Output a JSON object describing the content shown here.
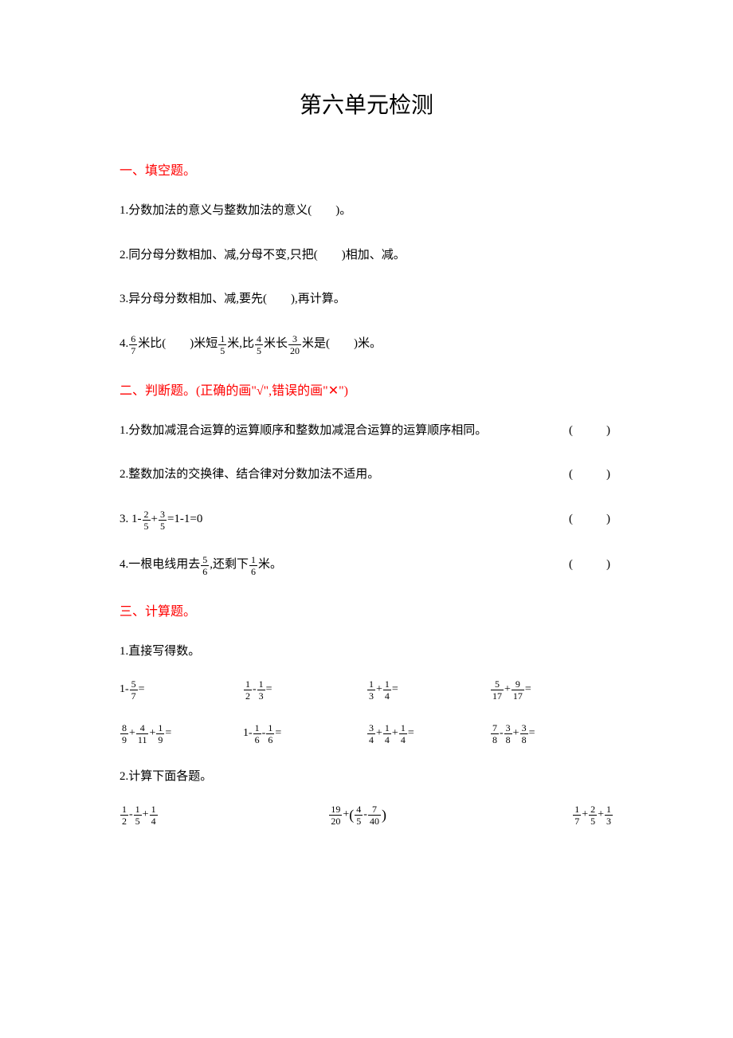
{
  "title": "第六单元检测",
  "section1": {
    "header": "一、填空题。",
    "q1": "1.分数加法的意义与整数加法的意义(　　)。",
    "q2": "2.同分母分数相加、减,分母不变,只把(　　)相加、减。",
    "q3": "3.异分母分数相加、减,要先(　　),再计算。",
    "q4_prefix": "4.",
    "q4_m1": "米比(　　)米短",
    "q4_m2": "米,比",
    "q4_m3": "米长",
    "q4_m4": "米是(　　)米。",
    "f67n": "6",
    "f67d": "7",
    "f15n": "1",
    "f15d": "5",
    "f45n": "4",
    "f45d": "5",
    "f320n": "3",
    "f320d": "20"
  },
  "section2": {
    "header": "二、判断题。(正确的画\"√\",错误的画\"✕\")",
    "q1": "1.分数加减混合运算的运算顺序和整数加减混合运算的运算顺序相同。",
    "q2": "2.整数加法的交换律、结合律对分数加法不适用。",
    "q3_prefix": "3. 1-",
    "q3_plus": "+",
    "q3_suffix": "=1-1=0",
    "f25n": "2",
    "f25d": "5",
    "f35n": "3",
    "f35d": "5",
    "q4_prefix": "4.一根电线用去",
    "q4_mid": ",还剩下",
    "q4_suffix": "米。",
    "f56n": "5",
    "f56d": "6",
    "f16n": "1",
    "f16d": "6",
    "paren": "(　　)"
  },
  "section3": {
    "header": "三、计算题。",
    "sub1": "1.直接写得数。",
    "sub2": "2.计算下面各题。",
    "r1": {
      "c1_pre": "1-",
      "c1_f1n": "5",
      "c1_f1d": "7",
      "c1_post": "=",
      "c2_f1n": "1",
      "c2_f1d": "2",
      "c2_op": "-",
      "c2_f2n": "1",
      "c2_f2d": "3",
      "c2_post": "=",
      "c3_f1n": "1",
      "c3_f1d": "3",
      "c3_op": "+",
      "c3_f2n": "1",
      "c3_f2d": "4",
      "c3_post": "=",
      "c4_f1n": "5",
      "c4_f1d": "17",
      "c4_op": "+",
      "c4_f2n": "9",
      "c4_f2d": "17",
      "c4_post": "="
    },
    "r2": {
      "c1_f1n": "8",
      "c1_f1d": "9",
      "c1_op1": "+",
      "c1_f2n": "4",
      "c1_f2d": "11",
      "c1_op2": "+",
      "c1_f3n": "1",
      "c1_f3d": "9",
      "c1_post": "=",
      "c2_pre": "1-",
      "c2_f1n": "1",
      "c2_f1d": "6",
      "c2_op": "-",
      "c2_f2n": "1",
      "c2_f2d": "6",
      "c2_post": "=",
      "c3_f1n": "3",
      "c3_f1d": "4",
      "c3_op1": "+",
      "c3_f2n": "1",
      "c3_f2d": "4",
      "c3_op2": "+",
      "c3_f3n": "1",
      "c3_f3d": "4",
      "c3_post": "=",
      "c4_f1n": "7",
      "c4_f1d": "8",
      "c4_op1": "-",
      "c4_f2n": "3",
      "c4_f2d": "8",
      "c4_op2": "+",
      "c4_f3n": "3",
      "c4_f3d": "8",
      "c4_post": "="
    },
    "r3": {
      "c1_f1n": "1",
      "c1_f1d": "2",
      "c1_op1": "-",
      "c1_f2n": "1",
      "c1_f2d": "5",
      "c1_op2": "+",
      "c1_f3n": "1",
      "c1_f3d": "4",
      "c2_f1n": "19",
      "c2_f1d": "20",
      "c2_op1": "+",
      "c2_lp": "(",
      "c2_f2n": "4",
      "c2_f2d": "5",
      "c2_op2": " - ",
      "c2_f3n": "7",
      "c2_f3d": "40",
      "c2_rp": ")",
      "c3_f1n": "1",
      "c3_f1d": "7",
      "c3_op1": "+",
      "c3_f2n": "2",
      "c3_f2d": "5",
      "c3_op2": "+",
      "c3_f3n": "1",
      "c3_f3d": "3"
    }
  },
  "colors": {
    "accent": "#ff0000",
    "text": "#000000",
    "background": "#ffffff"
  }
}
